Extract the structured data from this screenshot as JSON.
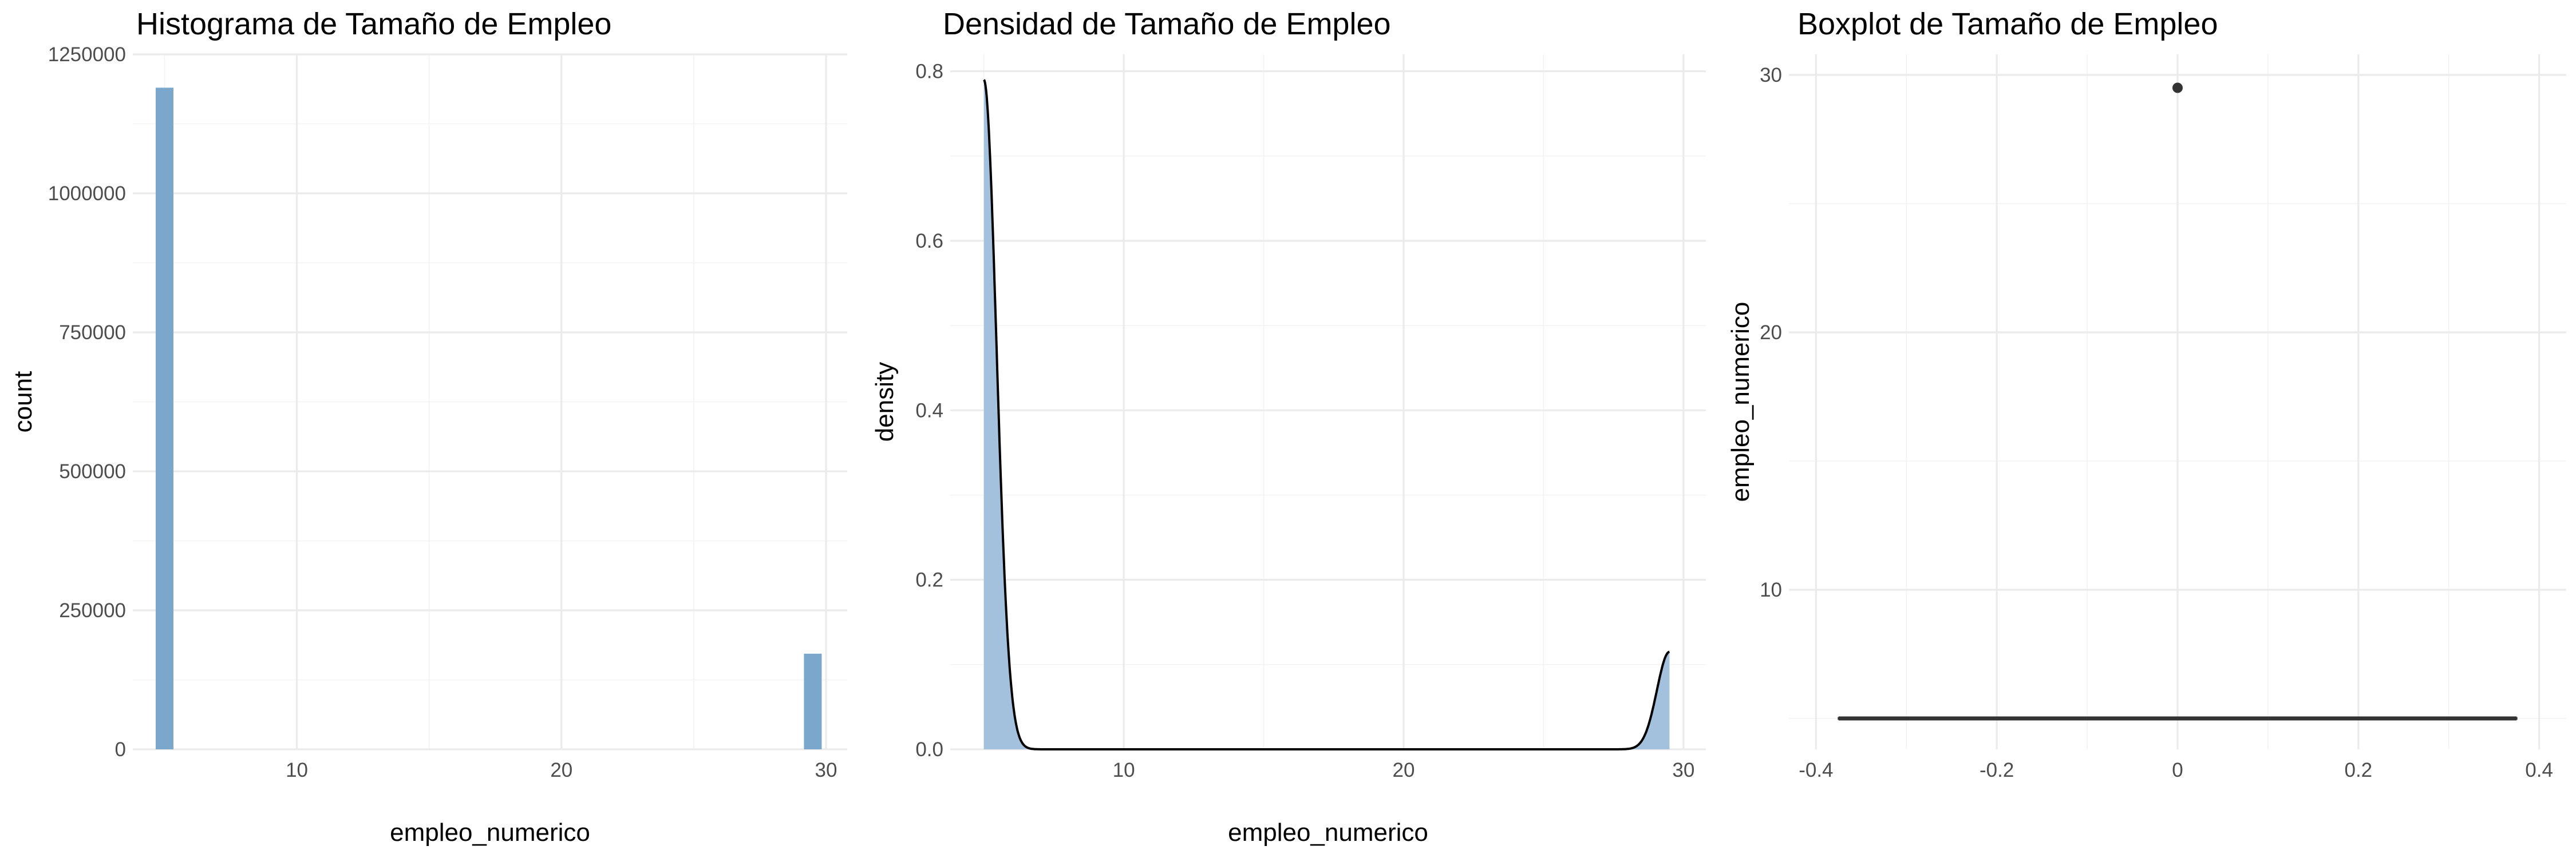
{
  "chart_data": [
    {
      "type": "bar",
      "title": "Histograma de Tamaño de Empleo",
      "xlabel": "empleo_numerico",
      "ylabel": "count",
      "xlim": [
        3.8,
        30.8
      ],
      "ylim": [
        0,
        1250000
      ],
      "x_ticks": [
        10,
        20,
        30
      ],
      "y_ticks": [
        0,
        250000,
        500000,
        750000,
        1000000,
        1250000
      ],
      "bins": [
        {
          "x": 5,
          "count": 1190000
        },
        {
          "x": 29.5,
          "count": 172000
        }
      ],
      "fill_color": "#7ba7cc",
      "grid": true
    },
    {
      "type": "area",
      "title": "Densidad de Tamaño de Empleo",
      "xlabel": "empleo_numerico",
      "ylabel": "density",
      "xlim": [
        3.8,
        30.8
      ],
      "ylim": [
        0,
        0.82
      ],
      "x_ticks": [
        10,
        20,
        30
      ],
      "y_ticks": [
        0.0,
        0.2,
        0.4,
        0.6,
        0.8
      ],
      "density_components": [
        {
          "center": 5.0,
          "peak": 0.79,
          "sd": 0.45
        },
        {
          "center": 29.5,
          "peak": 0.115,
          "sd": 0.45
        }
      ],
      "x_range": [
        5.0,
        29.5
      ],
      "fill_color": "#a3c1dd",
      "line_color": "#000000",
      "grid": true
    },
    {
      "type": "box",
      "title": "Boxplot de Tamaño de Empleo",
      "xlabel": "",
      "ylabel": "empleo_numerico",
      "xlim": [
        -0.43,
        0.43
      ],
      "ylim": [
        3.8,
        30.8
      ],
      "x_ticks": [
        -0.4,
        -0.2,
        0.0,
        0.2,
        0.4
      ],
      "y_ticks": [
        10,
        20,
        30
      ],
      "box": {
        "x_center": 0.0,
        "x_min": -0.375,
        "x_max": 0.375,
        "q1": 5,
        "median": 5,
        "q3": 5
      },
      "outliers": [
        {
          "x": 0.0,
          "y": 29.5
        }
      ],
      "color": "#333333",
      "grid": true
    }
  ]
}
